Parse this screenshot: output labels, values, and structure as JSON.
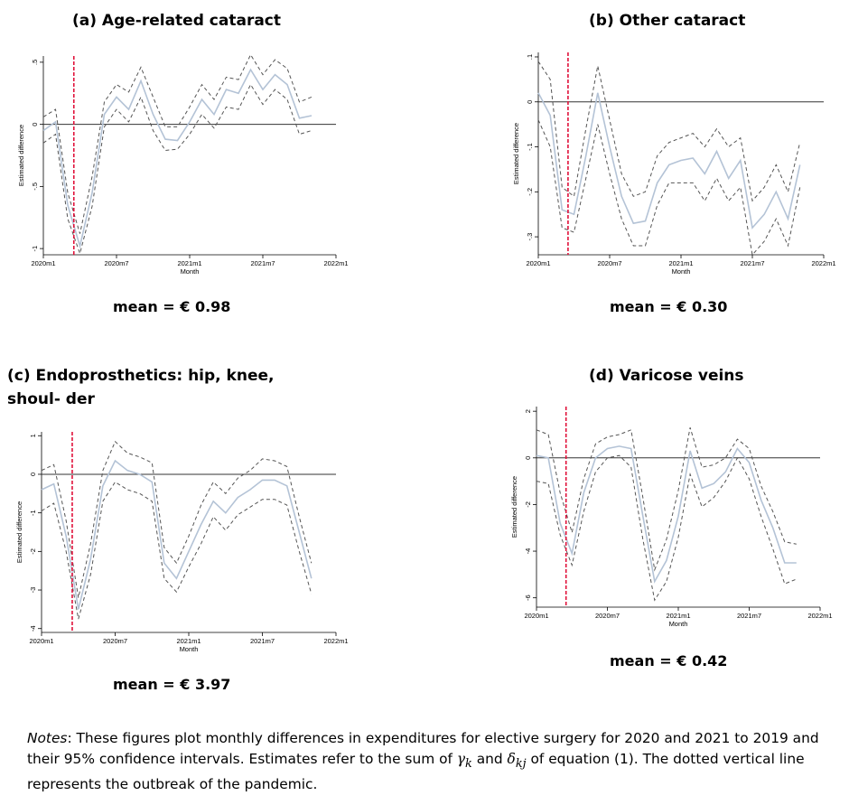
{
  "panels": [
    {
      "title": "(a) Age-related cataract",
      "mean": "mean = € 0.98"
    },
    {
      "title": "(b) Other cataract",
      "mean": "mean = € 0.30"
    },
    {
      "title": "(c) Endoprosthetics: hip, knee, shoul- der",
      "mean": "mean = € 3.97"
    },
    {
      "title": "(d) Varicose veins",
      "mean": "mean = € 0.42"
    }
  ],
  "notes": {
    "label": "Notes",
    "text_1": ": These figures plot monthly differences in expenditures for elective surgery for 2020 and 2021 to 2019 and their 95% confidence intervals. Estimates refer to the sum of ",
    "gamma": "γ",
    "gamma_sub": "k",
    "and": " and ",
    "delta": "δ",
    "delta_sub": "kj",
    "text_2": " of equation (1). The dotted vertical line represents the outbreak of the pandemic."
  },
  "colors": {
    "estimate": "#b4c3d6",
    "ci": "#555555",
    "outbreak": "#e0113a",
    "zero": "#333333"
  },
  "chart_data": [
    {
      "type": "line",
      "title": "(a) Age-related cataract",
      "xlabel": "Month",
      "ylabel": "Estimated difference",
      "x_ticks": [
        0,
        6,
        12,
        18,
        24
      ],
      "x_tick_labels": [
        "2020m1",
        "2020m7",
        "2021m1",
        "2021m7",
        "2022m1"
      ],
      "xlim": [
        0,
        24
      ],
      "y_ticks": [
        -1,
        -0.5,
        0,
        0.5
      ],
      "y_tick_labels": [
        "-1",
        "-.5",
        "0",
        ".5"
      ],
      "ylim": [
        -1.05,
        0.55
      ],
      "outbreak_month": 2.5,
      "zero_line": 0,
      "x": [
        0,
        1,
        2,
        3,
        4,
        5,
        6,
        7,
        8,
        9,
        10,
        11,
        12,
        13,
        14,
        15,
        16,
        17,
        18,
        19,
        20,
        21,
        22
      ],
      "series": [
        {
          "name": "estimate",
          "values": [
            -0.05,
            0.02,
            -0.65,
            -0.98,
            -0.55,
            0.08,
            0.22,
            0.12,
            0.35,
            0.08,
            -0.12,
            -0.13,
            0.02,
            0.2,
            0.08,
            0.28,
            0.25,
            0.44,
            0.28,
            0.4,
            0.32,
            0.05,
            0.07
          ]
        },
        {
          "name": "upper 95% CI",
          "values": [
            0.06,
            0.12,
            -0.55,
            -0.88,
            -0.42,
            0.18,
            0.32,
            0.26,
            0.46,
            0.22,
            -0.02,
            -0.02,
            0.14,
            0.32,
            0.2,
            0.38,
            0.36,
            0.56,
            0.4,
            0.52,
            0.45,
            0.18,
            0.22
          ]
        },
        {
          "name": "lower 95% CI",
          "values": [
            -0.15,
            -0.08,
            -0.76,
            -1.04,
            -0.66,
            -0.02,
            0.12,
            0.02,
            0.22,
            -0.05,
            -0.21,
            -0.2,
            -0.08,
            0.08,
            -0.03,
            0.14,
            0.12,
            0.32,
            0.16,
            0.28,
            0.2,
            -0.08,
            -0.05
          ]
        }
      ]
    },
    {
      "type": "line",
      "title": "(b) Other cataract",
      "xlabel": "Month",
      "ylabel": "Estimated difference",
      "x_ticks": [
        0,
        6,
        12,
        18,
        24
      ],
      "x_tick_labels": [
        "2020m1",
        "2020m7",
        "2021m1",
        "2021m7",
        "2022m1"
      ],
      "xlim": [
        0,
        24
      ],
      "y_ticks": [
        -0.3,
        -0.2,
        -0.1,
        0,
        0.1
      ],
      "y_tick_labels": [
        "-.3",
        "-.2",
        "-.1",
        "0",
        ".1"
      ],
      "ylim": [
        -0.34,
        0.11
      ],
      "outbreak_month": 2.5,
      "zero_line": 0,
      "x": [
        0,
        1,
        2,
        3,
        4,
        5,
        6,
        7,
        8,
        9,
        10,
        11,
        12,
        13,
        14,
        15,
        16,
        17,
        18,
        19,
        20,
        21,
        22
      ],
      "series": [
        {
          "name": "estimate",
          "values": [
            0.02,
            -0.03,
            -0.24,
            -0.25,
            -0.12,
            0.02,
            -0.1,
            -0.21,
            -0.27,
            -0.265,
            -0.18,
            -0.14,
            -0.13,
            -0.125,
            -0.16,
            -0.11,
            -0.17,
            -0.13,
            -0.28,
            -0.25,
            -0.2,
            -0.26,
            -0.14
          ]
        },
        {
          "name": "upper 95% CI",
          "values": [
            0.09,
            0.05,
            -0.19,
            -0.21,
            -0.06,
            0.08,
            -0.04,
            -0.16,
            -0.21,
            -0.2,
            -0.12,
            -0.09,
            -0.08,
            -0.07,
            -0.1,
            -0.06,
            -0.1,
            -0.08,
            -0.22,
            -0.19,
            -0.14,
            -0.2,
            -0.09
          ]
        },
        {
          "name": "lower 95% CI",
          "values": [
            -0.04,
            -0.1,
            -0.28,
            -0.29,
            -0.17,
            -0.05,
            -0.16,
            -0.26,
            -0.32,
            -0.32,
            -0.23,
            -0.18,
            -0.18,
            -0.18,
            -0.22,
            -0.17,
            -0.22,
            -0.19,
            -0.34,
            -0.31,
            -0.26,
            -0.32,
            -0.19
          ]
        }
      ]
    },
    {
      "type": "line",
      "title": "(c) Endoprosthetics: hip, knee, shoul- der",
      "xlabel": "Month",
      "ylabel": "Estimated difference",
      "x_ticks": [
        0,
        6,
        12,
        18,
        24
      ],
      "x_tick_labels": [
        "2020m1",
        "2020m7",
        "2021m1",
        "2021m7",
        "2022m1"
      ],
      "xlim": [
        0,
        24
      ],
      "y_ticks": [
        -4,
        -3,
        -2,
        -1,
        0,
        1
      ],
      "y_tick_labels": [
        "-4",
        "-3",
        "-2",
        "-1",
        "0",
        "1"
      ],
      "ylim": [
        -4.1,
        1.1
      ],
      "outbreak_month": 2.5,
      "zero_line": 0,
      "x": [
        0,
        1,
        2,
        3,
        4,
        5,
        6,
        7,
        8,
        9,
        10,
        11,
        12,
        13,
        14,
        15,
        16,
        17,
        18,
        19,
        20,
        21,
        22
      ],
      "series": [
        {
          "name": "estimate",
          "values": [
            -0.4,
            -0.25,
            -1.6,
            -3.5,
            -2.2,
            -0.3,
            0.35,
            0.1,
            0,
            -0.2,
            -2.3,
            -2.7,
            -2,
            -1.3,
            -0.7,
            -1,
            -0.6,
            -0.4,
            -0.15,
            -0.15,
            -0.3,
            -1.5,
            -2.7
          ]
        },
        {
          "name": "upper 95% CI",
          "values": [
            0.1,
            0.25,
            -1.2,
            -3.2,
            -1.8,
            0.1,
            0.85,
            0.55,
            0.45,
            0.3,
            -1.9,
            -2.3,
            -1.6,
            -0.8,
            -0.2,
            -0.5,
            -0.1,
            0.1,
            0.4,
            0.35,
            0.2,
            -1.1,
            -2.3
          ]
        },
        {
          "name": "lower 95% CI",
          "values": [
            -0.95,
            -0.75,
            -2,
            -3.75,
            -2.6,
            -0.7,
            -0.2,
            -0.4,
            -0.5,
            -0.7,
            -2.7,
            -3.05,
            -2.4,
            -1.8,
            -1.1,
            -1.45,
            -1.05,
            -0.85,
            -0.65,
            -0.65,
            -0.8,
            -2,
            -3.1
          ]
        }
      ]
    },
    {
      "type": "line",
      "title": "(d) Varicose veins",
      "xlabel": "Month",
      "ylabel": "Estimated difference",
      "x_ticks": [
        0,
        6,
        12,
        18,
        24
      ],
      "x_tick_labels": [
        "2020m1",
        "2020m7",
        "2021m1",
        "2021m7",
        "2022m1"
      ],
      "xlim": [
        0,
        24
      ],
      "y_ticks": [
        -6,
        -4,
        -2,
        0,
        2
      ],
      "y_tick_labels": [
        "-6",
        "-4",
        "-2",
        "0",
        "2"
      ],
      "ylim": [
        -6.4,
        2.2
      ],
      "outbreak_month": 2.5,
      "zero_line": 0,
      "x": [
        0,
        1,
        2,
        3,
        4,
        5,
        6,
        7,
        8,
        9,
        10,
        11,
        12,
        13,
        14,
        15,
        16,
        17,
        18,
        19,
        20,
        21,
        22
      ],
      "series": [
        {
          "name": "estimate",
          "values": [
            0.1,
            0,
            -2.8,
            -4.1,
            -1.5,
            0,
            0.4,
            0.5,
            0.4,
            -2.5,
            -5.3,
            -4.4,
            -2.5,
            0.3,
            -1.3,
            -1.1,
            -0.6,
            0.4,
            -0.2,
            -1.8,
            -3,
            -4.5,
            -4.5
          ]
        },
        {
          "name": "upper 95% CI",
          "values": [
            1.2,
            1,
            -1.5,
            -3.2,
            -0.9,
            0.6,
            0.9,
            1,
            1.2,
            -1.7,
            -4.8,
            -3.5,
            -1.4,
            1.3,
            -0.4,
            -0.3,
            0,
            0.8,
            0.4,
            -1.2,
            -2.3,
            -3.6,
            -3.7
          ]
        },
        {
          "name": "lower 95% CI",
          "values": [
            -1,
            -1.1,
            -3.3,
            -4.6,
            -2.3,
            -0.6,
            0,
            0.1,
            -0.4,
            -3.5,
            -6.1,
            -5.3,
            -3.4,
            -0.7,
            -2.1,
            -1.7,
            -1,
            0,
            -0.9,
            -2.5,
            -3.9,
            -5.4,
            -5.2
          ]
        }
      ]
    }
  ]
}
